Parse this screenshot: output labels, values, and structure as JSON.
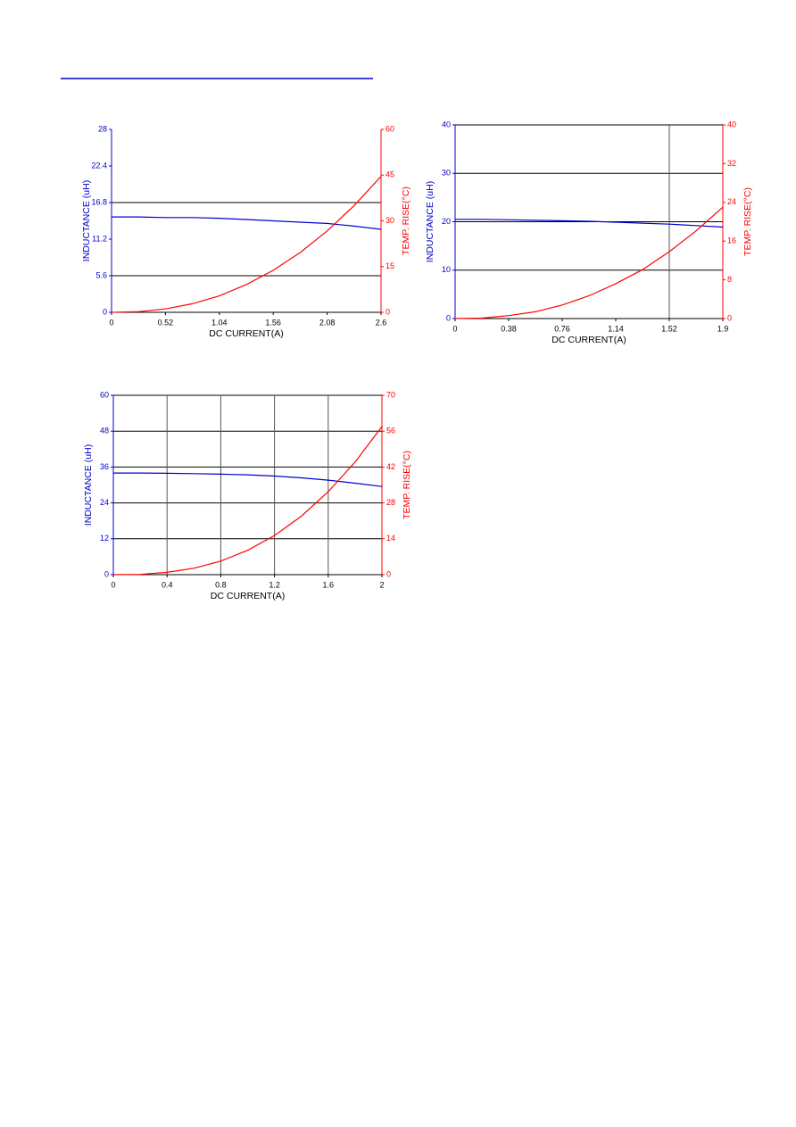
{
  "chart_data": [
    {
      "type": "line",
      "x_label": "DC CURRENT(A)",
      "y_label": "INDUCTANCE (uH)",
      "y2_label": "TEMP. RISE(°C)",
      "x": [
        0,
        0.26,
        0.52,
        0.78,
        1.04,
        1.3,
        1.56,
        1.82,
        2.08,
        2.34,
        2.6
      ],
      "xlim": [
        0,
        2.6
      ],
      "xticks": [
        0,
        0.52,
        1.04,
        1.56,
        2.08,
        2.6
      ],
      "ylim": [
        0,
        28
      ],
      "yticks": [
        0,
        5.6,
        11.2,
        16.8,
        22.4,
        28
      ],
      "y2lim": [
        0,
        60
      ],
      "y2ticks": [
        0,
        15,
        30,
        45,
        60
      ],
      "hgrid": [
        5.6,
        16.8
      ],
      "vgrid": [],
      "series": [
        {
          "name": "Inductance",
          "color": "#0000cc",
          "values": [
            14.6,
            14.6,
            14.5,
            14.5,
            14.4,
            14.2,
            14.0,
            13.8,
            13.6,
            13.2,
            12.7
          ]
        },
        {
          "name": "Temp rise",
          "color": "#ff0000",
          "axis": "y2",
          "values": [
            0,
            0.2,
            1.1,
            2.8,
            5.4,
            9.1,
            13.8,
            19.6,
            26.7,
            35.0,
            44.6
          ]
        }
      ]
    },
    {
      "type": "line",
      "x_label": "DC CURRENT(A)",
      "y_label": "INDUCTANCE (uH)",
      "y2_label": "TEMP. RISE(°C)",
      "x": [
        0,
        0.19,
        0.38,
        0.57,
        0.76,
        0.95,
        1.14,
        1.33,
        1.52,
        1.71,
        1.9
      ],
      "xlim": [
        0,
        1.9
      ],
      "xticks": [
        0,
        0.38,
        0.76,
        1.14,
        1.52,
        1.9
      ],
      "ylim": [
        0,
        40
      ],
      "yticks": [
        0,
        10,
        20,
        30,
        40
      ],
      "y2lim": [
        0,
        40
      ],
      "y2ticks": [
        0,
        8,
        16,
        24,
        32,
        40
      ],
      "hgrid": [
        10,
        20,
        30,
        40
      ],
      "vgrid": [
        1.52
      ],
      "series": [
        {
          "name": "Inductance",
          "color": "#0000cc",
          "values": [
            20.5,
            20.5,
            20.4,
            20.3,
            20.2,
            20.1,
            19.9,
            19.7,
            19.5,
            19.2,
            18.9
          ]
        },
        {
          "name": "Temp rise",
          "color": "#ff0000",
          "axis": "y2",
          "values": [
            0,
            0.1,
            0.6,
            1.4,
            2.8,
            4.7,
            7.2,
            10.1,
            13.8,
            18.1,
            23.0
          ]
        }
      ]
    },
    {
      "type": "line",
      "x_label": "DC CURRENT(A)",
      "y_label": "INDUCTANCE (uH)",
      "y2_label": "TEMP. RISE(°C)",
      "x": [
        0,
        0.2,
        0.4,
        0.6,
        0.8,
        1.0,
        1.2,
        1.4,
        1.6,
        1.8,
        2
      ],
      "xlim": [
        0,
        2
      ],
      "xticks": [
        0,
        0.4,
        0.8,
        1.2,
        1.6,
        2
      ],
      "ylim": [
        0,
        60
      ],
      "yticks": [
        0,
        12,
        24,
        36,
        48,
        60
      ],
      "y2lim": [
        0,
        70
      ],
      "y2ticks": [
        0,
        14,
        28,
        42,
        56,
        70
      ],
      "hgrid": [
        12,
        24,
        36,
        48,
        60
      ],
      "vgrid": [
        0.4,
        0.8,
        1.2,
        1.6
      ],
      "series": [
        {
          "name": "Inductance",
          "color": "#0000cc",
          "values": [
            34,
            34,
            33.9,
            33.8,
            33.6,
            33.4,
            33.0,
            32.4,
            31.6,
            30.6,
            29.5
          ]
        },
        {
          "name": "Temp rise",
          "color": "#ff0000",
          "axis": "y2",
          "values": [
            0,
            0.1,
            0.9,
            2.5,
            5.3,
            9.5,
            15.3,
            22.8,
            32.4,
            43.9,
            57.8
          ]
        }
      ]
    }
  ]
}
